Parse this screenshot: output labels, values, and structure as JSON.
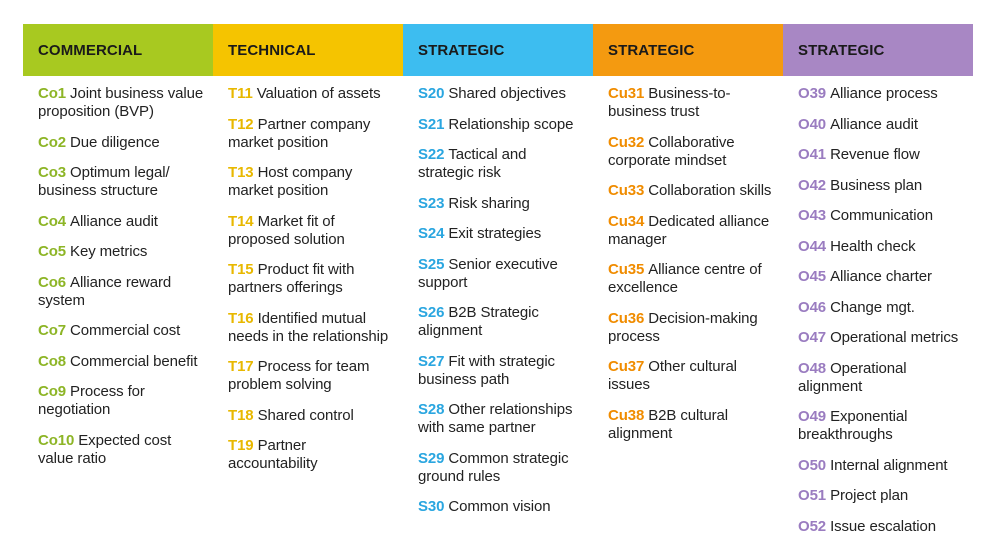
{
  "columns": [
    {
      "title": "COMMERCIAL",
      "header_color": "#a8c920",
      "code_color": "#8db526",
      "items": [
        {
          "code": "Co1",
          "text": "Joint business value proposition (BVP)"
        },
        {
          "code": "Co2",
          "text": "Due diligence"
        },
        {
          "code": "Co3",
          "text": "Optimum legal/ business structure"
        },
        {
          "code": "Co4",
          "text": "Alliance audit"
        },
        {
          "code": "Co5",
          "text": "Key metrics"
        },
        {
          "code": "Co6",
          "text": "Alliance reward system"
        },
        {
          "code": "Co7",
          "text": "Commercial cost"
        },
        {
          "code": "Co8",
          "text": "Commercial benefit"
        },
        {
          "code": "Co9",
          "text": "Process for negotiation"
        },
        {
          "code": "Co10",
          "text": "Expected cost value ratio"
        }
      ]
    },
    {
      "title": "TECHNICAL",
      "header_color": "#f5c400",
      "code_color": "#e8b800",
      "items": [
        {
          "code": "T11",
          "text": "Valuation of assets"
        },
        {
          "code": "T12",
          "text": "Partner company market position"
        },
        {
          "code": "T13",
          "text": "Host company market position"
        },
        {
          "code": "T14",
          "text": "Market fit of proposed solution"
        },
        {
          "code": "T15",
          "text": "Product fit with partners offerings"
        },
        {
          "code": "T16",
          "text": "Identified mutual needs in the relationship"
        },
        {
          "code": "T17",
          "text": "Process for team problem solving"
        },
        {
          "code": "T18",
          "text": "Shared control"
        },
        {
          "code": "T19",
          "text": "Partner accountability"
        }
      ]
    },
    {
      "title": "STRATEGIC",
      "header_color": "#3dbdf0",
      "code_color": "#2aa6e0",
      "items": [
        {
          "code": "S20",
          "text": "Shared objectives"
        },
        {
          "code": "S21",
          "text": "Relationship scope"
        },
        {
          "code": "S22",
          "text": "Tactical and strategic risk"
        },
        {
          "code": "S23",
          "text": "Risk sharing"
        },
        {
          "code": "S24",
          "text": "Exit strategies"
        },
        {
          "code": "S25",
          "text": "Senior executive support"
        },
        {
          "code": "S26",
          "text": "B2B Strategic alignment"
        },
        {
          "code": "S27",
          "text": "Fit with strategic business path"
        },
        {
          "code": "S28",
          "text": "Other relationships with same partner"
        },
        {
          "code": "S29",
          "text": "Common strategic ground rules"
        },
        {
          "code": "S30",
          "text": "Common vision"
        }
      ]
    },
    {
      "title": "STRATEGIC",
      "header_color": "#f49a10",
      "code_color": "#f08c00",
      "items": [
        {
          "code": "Cu31",
          "text": "Business-to-business trust"
        },
        {
          "code": "Cu32",
          "text": "Collaborative corporate mindset"
        },
        {
          "code": "Cu33",
          "text": "Collaboration skills"
        },
        {
          "code": "Cu34",
          "text": "Dedicated alliance manager"
        },
        {
          "code": "Cu35",
          "text": "Alliance centre of excellence"
        },
        {
          "code": "Cu36",
          "text": "Decision-making process"
        },
        {
          "code": "Cu37",
          "text": "Other cultural issues"
        },
        {
          "code": "Cu38",
          "text": "B2B cultural alignment"
        }
      ]
    },
    {
      "title": "STRATEGIC",
      "header_color": "#a887c4",
      "code_color": "#9a7cc0",
      "items": [
        {
          "code": "O39",
          "text": "Alliance process"
        },
        {
          "code": "O40",
          "text": "Alliance audit"
        },
        {
          "code": "O41",
          "text": "Revenue flow"
        },
        {
          "code": "O42",
          "text": "Business plan"
        },
        {
          "code": "O43",
          "text": "Communication"
        },
        {
          "code": "O44",
          "text": "Health check"
        },
        {
          "code": "O45",
          "text": "Alliance charter"
        },
        {
          "code": "O46",
          "text": "Change mgt."
        },
        {
          "code": "O47",
          "text": "Operational metrics"
        },
        {
          "code": "O48",
          "text": "Operational alignment"
        },
        {
          "code": "O49",
          "text": "Exponential breakthroughs"
        },
        {
          "code": "O50",
          "text": "Internal alignment"
        },
        {
          "code": "O51",
          "text": "Project plan"
        },
        {
          "code": "O52",
          "text": "Issue escalation"
        }
      ]
    }
  ]
}
